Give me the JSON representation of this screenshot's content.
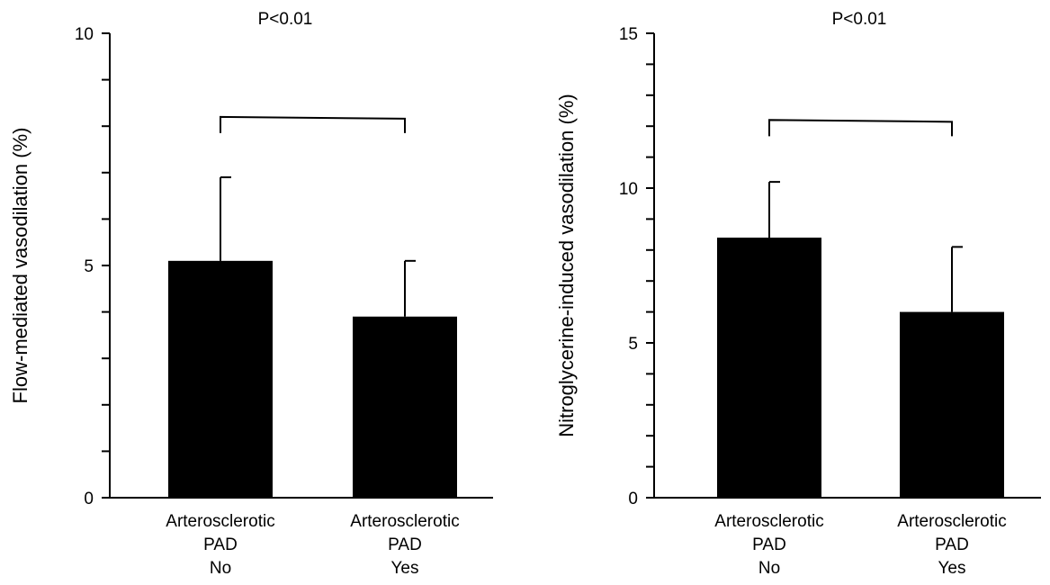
{
  "chart_data": [
    {
      "type": "bar",
      "ylabel": "Flow-mediated vasodilation (%)",
      "ylim": [
        0,
        10
      ],
      "major_ticks": [
        0,
        5,
        10
      ],
      "minor_tick_step": 1,
      "categories": [
        [
          "Arterosclerotic",
          "PAD",
          "No"
        ],
        [
          "Arterosclerotic",
          "PAD",
          "Yes"
        ]
      ],
      "values": [
        5.1,
        3.9
      ],
      "errors": [
        1.8,
        1.2
      ],
      "bar_color": "#000000",
      "significance": {
        "label": "P<0.01",
        "between": [
          0,
          1
        ],
        "level": 8.2
      }
    },
    {
      "type": "bar",
      "ylabel": "Nitroglycerine-induced vasodilation (%)",
      "ylim": [
        0,
        15
      ],
      "major_ticks": [
        0,
        5,
        10,
        15
      ],
      "minor_tick_step": 1,
      "categories": [
        [
          "Arterosclerotic",
          "PAD",
          "No"
        ],
        [
          "Arterosclerotic",
          "PAD",
          "Yes"
        ]
      ],
      "values": [
        8.4,
        6.0
      ],
      "errors": [
        1.8,
        2.1
      ],
      "bar_color": "#000000",
      "significance": {
        "label": "P<0.01",
        "between": [
          0,
          1
        ],
        "level": 12.2
      }
    }
  ]
}
